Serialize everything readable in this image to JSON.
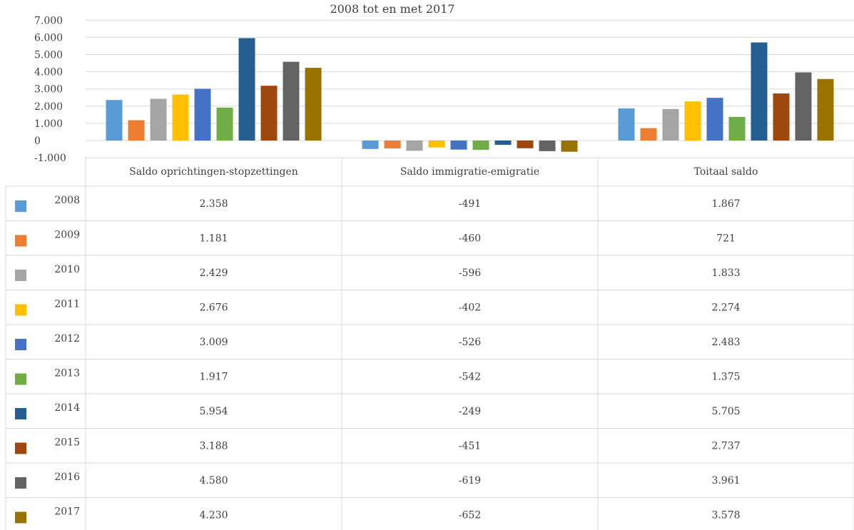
{
  "chart_data": {
    "type": "bar",
    "title": "2008 tot en met 2017",
    "categories": [
      "Saldo oprichtingen-stopzettingen",
      "Saldo immigratie-emigratie",
      "Toitaal saldo"
    ],
    "ylim": [
      -1000,
      7000
    ],
    "yticks": [
      -1000,
      0,
      1000,
      2000,
      3000,
      4000,
      5000,
      6000,
      7000
    ],
    "ytick_labels": [
      "-1.000",
      "0",
      "1.000",
      "2.000",
      "3.000",
      "4.000",
      "5.000",
      "6.000",
      "7.000"
    ],
    "grid": true,
    "legend": "data-table",
    "series": [
      {
        "name": "2008",
        "color": "#5B9BD5",
        "values": [
          2358,
          -491,
          1867
        ],
        "labels": [
          "2.358",
          "-491",
          "1.867"
        ]
      },
      {
        "name": "2009",
        "color": "#ED7D31",
        "values": [
          1181,
          -460,
          721
        ],
        "labels": [
          "1.181",
          "-460",
          "721"
        ]
      },
      {
        "name": "2010",
        "color": "#A5A5A5",
        "values": [
          2429,
          -596,
          1833
        ],
        "labels": [
          "2.429",
          "-596",
          "1.833"
        ]
      },
      {
        "name": "2011",
        "color": "#FFC000",
        "values": [
          2676,
          -402,
          2274
        ],
        "labels": [
          "2.676",
          "-402",
          "2.274"
        ]
      },
      {
        "name": "2012",
        "color": "#4472C4",
        "values": [
          3009,
          -526,
          2483
        ],
        "labels": [
          "3.009",
          "-526",
          "2.483"
        ]
      },
      {
        "name": "2013",
        "color": "#70AD47",
        "values": [
          1917,
          -542,
          1375
        ],
        "labels": [
          "1.917",
          "-542",
          "1.375"
        ]
      },
      {
        "name": "2014",
        "color": "#255E91",
        "values": [
          5954,
          -249,
          5705
        ],
        "labels": [
          "5.954",
          "-249",
          "5.705"
        ]
      },
      {
        "name": "2015",
        "color": "#9E480E",
        "values": [
          3188,
          -451,
          2737
        ],
        "labels": [
          "3.188",
          "-451",
          "2.737"
        ]
      },
      {
        "name": "2016",
        "color": "#636363",
        "values": [
          4580,
          -619,
          3961
        ],
        "labels": [
          "4.580",
          "-619",
          "3.961"
        ]
      },
      {
        "name": "2017",
        "color": "#997300",
        "values": [
          4230,
          -652,
          3578
        ],
        "labels": [
          "4.230",
          "-652",
          "3.578"
        ]
      }
    ]
  }
}
